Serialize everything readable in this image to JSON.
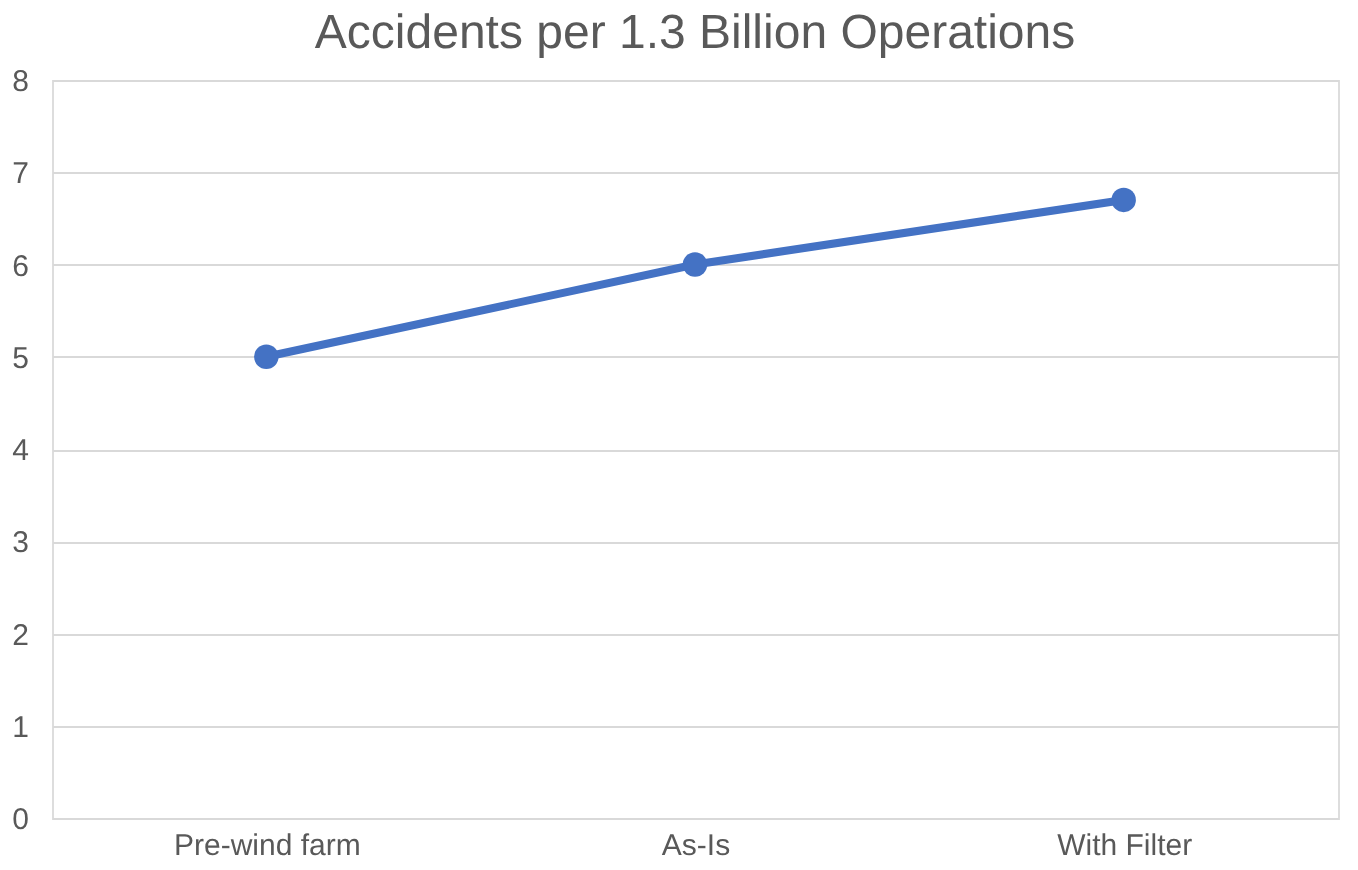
{
  "chart_data": {
    "type": "line",
    "title": "Accidents per 1.3 Billion Operations",
    "categories": [
      "Pre-wind farm",
      "As-Is",
      "With Filter"
    ],
    "series": [
      {
        "color": "#4472c4",
        "values": [
          5,
          6,
          6.7
        ]
      }
    ],
    "ylim": [
      0,
      8
    ],
    "yticks": [
      0,
      1,
      2,
      3,
      4,
      5,
      6,
      7,
      8
    ],
    "grid": "y",
    "marker": "circle",
    "line_style": "solid",
    "legend": false
  }
}
